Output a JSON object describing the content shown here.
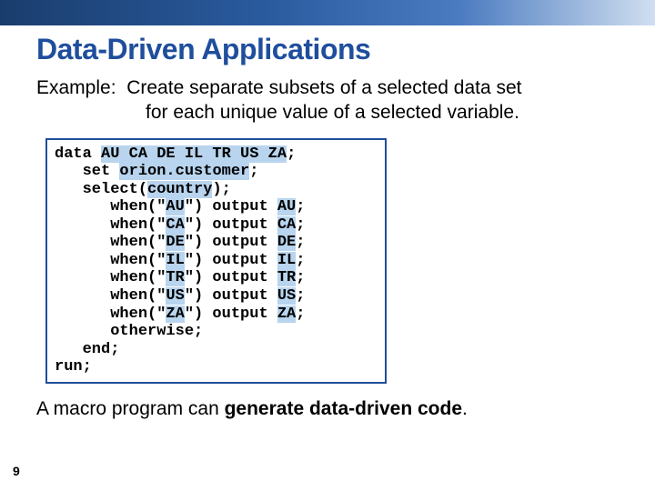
{
  "colors": {
    "title": "#1f4e9c",
    "code_border": "#1f4e9c",
    "highlight_bg": "#b8d4ee"
  },
  "title": "Data-Driven Applications",
  "example": {
    "label": "Example:",
    "line1": "Create separate subsets of a selected data set",
    "line2": "for each unique value of a selected variable."
  },
  "code": {
    "countries": [
      "AU",
      "CA",
      "DE",
      "IL",
      "TR",
      "US",
      "ZA"
    ],
    "dataset": "orion.customer",
    "select_var": "country",
    "kw_data": "data ",
    "kw_set": "   set ",
    "kw_select": "   select(",
    "kw_when_pre": "      when(\"",
    "kw_when_mid": "\") output ",
    "kw_otherwise": "      otherwise;",
    "kw_end": "   end;",
    "kw_run": "run;",
    "semicolon": ";",
    "close_paren_semi": ");"
  },
  "footer": {
    "pre": "A macro program can ",
    "bold": "generate data-driven code",
    "post": "."
  },
  "page_number": "9"
}
